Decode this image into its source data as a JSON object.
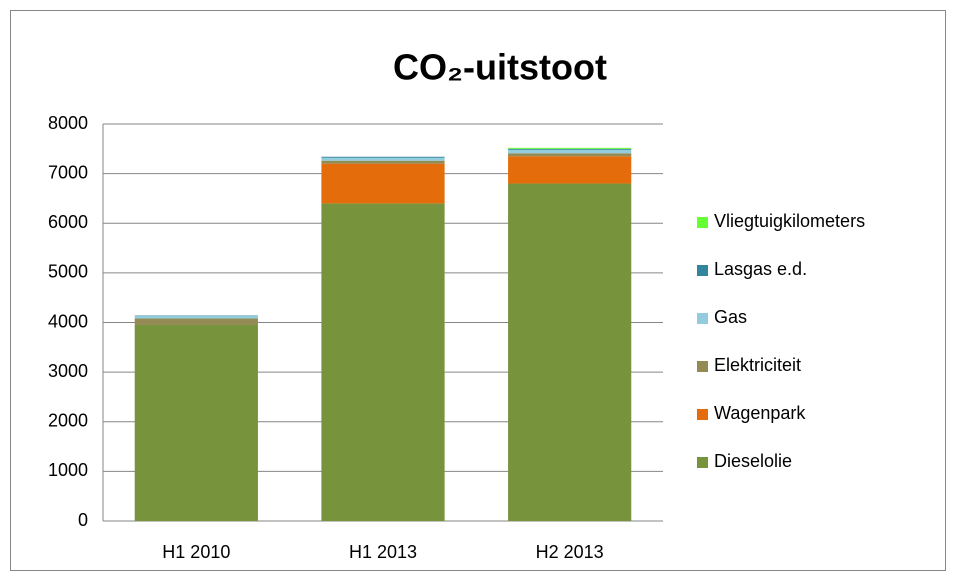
{
  "chart_data": {
    "type": "stacked_bar",
    "title": "CO₂-uitstoot",
    "categories": [
      "H1 2010",
      "H1 2013",
      "H2 2013"
    ],
    "series": [
      {
        "name": "Dieselolie",
        "color": "#77933c",
        "values": [
          3950,
          6400,
          6800
        ]
      },
      {
        "name": "Wagenpark",
        "color": "#e46c0a",
        "values": [
          0,
          800,
          550
        ]
      },
      {
        "name": "Elektriciteit",
        "color": "#948a54",
        "values": [
          130,
          60,
          60
        ]
      },
      {
        "name": "Gas",
        "color": "#93cddd",
        "values": [
          50,
          60,
          70
        ]
      },
      {
        "name": "Lasgas e.d.",
        "color": "#31859c",
        "values": [
          10,
          20,
          20
        ]
      },
      {
        "name": "Vliegtuigkilometers",
        "color": "#66ff33",
        "values": [
          0,
          0,
          20
        ]
      }
    ],
    "ylim": [
      0,
      8000
    ],
    "yticks": [
      0,
      1000,
      2000,
      3000,
      4000,
      5000,
      6000,
      7000,
      8000
    ],
    "grid": true,
    "legend": "right"
  }
}
